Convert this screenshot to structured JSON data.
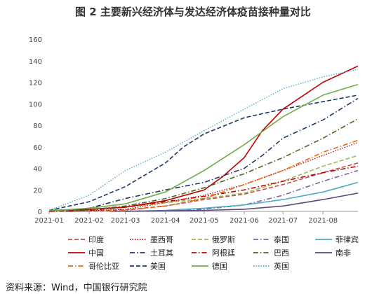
{
  "title": "图 2  主要新兴经济体与发达经济体疫苗接种量对比",
  "source": "资料来源：Wind，中国银行研究院",
  "chart_data": {
    "type": "line",
    "title": "图 2  主要新兴经济体与发达经济体疫苗接种量对比",
    "xlabel": "",
    "ylabel": "",
    "ylim": [
      0,
      160
    ],
    "yticks": [
      "0",
      "20",
      "40",
      "60",
      "80",
      "100",
      "120",
      "140",
      "160"
    ],
    "xlim": [
      "2021-01-01",
      "2021-08-28"
    ],
    "xticks": [
      "2021-01",
      "2021-02",
      "2021-03",
      "2021-04",
      "2021-05",
      "2021-06",
      "2021-07",
      "2021-08"
    ],
    "grid": false,
    "legend_position": "bottom",
    "series": [
      {
        "name": "印度",
        "color": "#c0504d",
        "dash": "dash",
        "x": [
          "2021-01-16",
          "2021-02-01",
          "2021-03-01",
          "2021-04-01",
          "2021-05-01",
          "2021-06-01",
          "2021-07-01",
          "2021-08-01",
          "2021-08-28"
        ],
        "y": [
          0,
          0.3,
          1.5,
          5,
          11,
          16,
          25,
          36,
          45
        ]
      },
      {
        "name": "墨西哥",
        "color": "#c00000",
        "dash": "dot",
        "x": [
          "2021-01-01",
          "2021-02-01",
          "2021-03-01",
          "2021-04-01",
          "2021-05-01",
          "2021-06-01",
          "2021-07-01",
          "2021-08-01",
          "2021-08-28"
        ],
        "y": [
          0,
          0.5,
          2,
          8,
          15,
          25,
          38,
          52,
          64
        ]
      },
      {
        "name": "俄罗斯",
        "color": "#9bbb59",
        "dash": "dash",
        "x": [
          "2021-01-01",
          "2021-02-01",
          "2021-03-01",
          "2021-04-01",
          "2021-05-01",
          "2021-06-01",
          "2021-07-01",
          "2021-08-01",
          "2021-08-28"
        ],
        "y": [
          0,
          1,
          4,
          8,
          12,
          17,
          28,
          42,
          52
        ]
      },
      {
        "name": "泰国",
        "color": "#8064a2",
        "dash": "dashdot",
        "x": [
          "2021-03-01",
          "2021-04-01",
          "2021-05-01",
          "2021-06-01",
          "2021-07-01",
          "2021-08-01",
          "2021-08-28"
        ],
        "y": [
          0,
          0.3,
          2,
          6,
          15,
          28,
          38
        ]
      },
      {
        "name": "菲律宾",
        "color": "#4bacc6",
        "dash": "solid",
        "x": [
          "2021-03-01",
          "2021-04-01",
          "2021-05-01",
          "2021-06-01",
          "2021-07-01",
          "2021-08-01",
          "2021-08-28"
        ],
        "y": [
          0,
          1,
          3,
          6,
          11,
          18,
          27
        ]
      },
      {
        "name": "中国",
        "color": "#c00000",
        "dash": "solid",
        "x": [
          "2021-01-01",
          "2021-02-01",
          "2021-03-01",
          "2021-04-01",
          "2021-05-01",
          "2021-05-15",
          "2021-06-01",
          "2021-06-15",
          "2021-07-01",
          "2021-08-01",
          "2021-08-28"
        ],
        "y": [
          1,
          2,
          4,
          10,
          20,
          32,
          50,
          75,
          95,
          120,
          135
        ]
      },
      {
        "name": "土耳其",
        "color": "#1f3864",
        "dash": "dashdot",
        "x": [
          "2021-01-14",
          "2021-02-01",
          "2021-03-01",
          "2021-04-01",
          "2021-05-01",
          "2021-06-01",
          "2021-06-15",
          "2021-07-01",
          "2021-08-01",
          "2021-08-28"
        ],
        "y": [
          0,
          3,
          12,
          20,
          27,
          40,
          52,
          68,
          85,
          105
        ]
      },
      {
        "name": "阿根廷",
        "color": "#c00000",
        "dash": "dashdot",
        "x": [
          "2021-01-01",
          "2021-02-01",
          "2021-03-01",
          "2021-04-01",
          "2021-05-01",
          "2021-06-01",
          "2021-07-01",
          "2021-08-01",
          "2021-08-28"
        ],
        "y": [
          0,
          1,
          4,
          9,
          14,
          20,
          28,
          36,
          42
        ]
      },
      {
        "name": "巴西",
        "color": "#4f6228",
        "dash": "dashdot",
        "x": [
          "2021-01-18",
          "2021-02-01",
          "2021-03-01",
          "2021-04-01",
          "2021-05-01",
          "2021-06-01",
          "2021-07-01",
          "2021-08-01",
          "2021-08-28"
        ],
        "y": [
          0,
          1.5,
          5,
          12,
          22,
          35,
          50,
          68,
          86
        ]
      },
      {
        "name": "南非",
        "color": "#5f497a",
        "dash": "solid",
        "x": [
          "2021-02-17",
          "2021-03-01",
          "2021-04-01",
          "2021-05-01",
          "2021-06-01",
          "2021-07-01",
          "2021-08-01",
          "2021-08-28"
        ],
        "y": [
          0,
          0.2,
          0.5,
          1,
          2,
          5,
          11,
          17
        ]
      },
      {
        "name": "哥伦比亚",
        "color": "#e46c0a",
        "dash": "dashdot",
        "x": [
          "2021-02-17",
          "2021-03-01",
          "2021-04-01",
          "2021-05-01",
          "2021-06-01",
          "2021-07-01",
          "2021-08-01",
          "2021-08-28"
        ],
        "y": [
          0,
          1,
          5,
          12,
          25,
          38,
          55,
          66
        ]
      },
      {
        "name": "美国",
        "color": "#1f3864",
        "dash": "dash",
        "x": [
          "2021-01-01",
          "2021-02-01",
          "2021-03-01",
          "2021-04-01",
          "2021-04-15",
          "2021-05-01",
          "2021-06-01",
          "2021-07-01",
          "2021-08-01",
          "2021-08-28"
        ],
        "y": [
          1,
          9,
          23,
          45,
          60,
          72,
          87,
          95,
          102,
          108
        ]
      },
      {
        "name": "德国",
        "color": "#70ad47",
        "dash": "solid",
        "x": [
          "2021-01-01",
          "2021-02-01",
          "2021-03-01",
          "2021-04-01",
          "2021-05-01",
          "2021-06-01",
          "2021-07-01",
          "2021-08-01",
          "2021-08-28"
        ],
        "y": [
          0.5,
          3,
          7,
          18,
          38,
          62,
          88,
          108,
          118
        ]
      },
      {
        "name": "英国",
        "color": "#4bacc6",
        "dash": "dot",
        "x": [
          "2021-01-01",
          "2021-02-01",
          "2021-03-01",
          "2021-04-01",
          "2021-05-01",
          "2021-06-01",
          "2021-07-01",
          "2021-08-01",
          "2021-08-28"
        ],
        "y": [
          1,
          15,
          38,
          55,
          75,
          95,
          114,
          125,
          132
        ]
      }
    ]
  }
}
